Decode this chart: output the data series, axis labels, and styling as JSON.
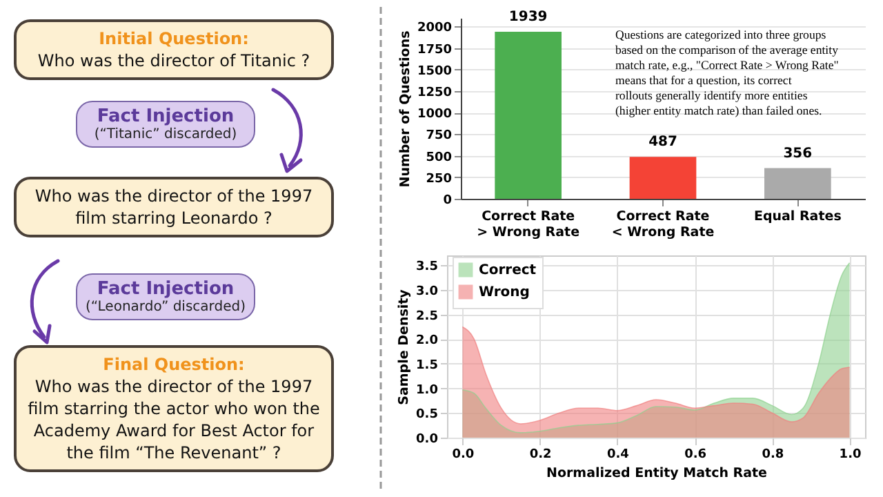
{
  "chart_data": [
    {
      "type": "other",
      "annotations": [
        "Initial Question:",
        "Who was the director of Titanic ?",
        "Fact Injection",
        "(“Titanic” discarded)",
        "Who was the director of the 1997 film starring Leonardo ?",
        "Fact Injection",
        "(“Leonardo” discarded)",
        "Final Question:",
        "Who was the director of the 1997 film starring the actor who won the Academy Award for Best Actor for the film “The Revenant” ?"
      ]
    },
    {
      "type": "bar",
      "ylabel": "Number of Questions",
      "categories": [
        "Correct Rate > Wrong Rate",
        "Correct Rate < Wrong Rate",
        "Equal Rates"
      ],
      "values": [
        1939,
        487,
        356
      ],
      "colors": [
        "#4caf50",
        "#f44336",
        "#aaaaaa"
      ],
      "ylim": [
        0,
        2100
      ],
      "yticks": [
        0,
        250,
        500,
        750,
        1000,
        1250,
        1500,
        1750,
        2000
      ],
      "grid": "y",
      "data_labels": true,
      "annotations": [
        "Questions are categorized into three groups based on the comparison of the average entity match rate, e.g., \"Correct Rate > Wrong Rate\" means that for a question, its correct rollouts generally identify more entities (higher entity match rate) than failed ones."
      ]
    },
    {
      "type": "area",
      "xlabel": "Normalized Entity Match Rate",
      "ylabel": "Sample Density",
      "xlim": [
        -0.04,
        1.04
      ],
      "ylim": [
        0,
        3.7
      ],
      "xticks": [
        {
          "value": 0,
          "label": "0.0"
        },
        {
          "value": 0.2,
          "label": "0.2"
        },
        {
          "value": 0.4,
          "label": "0.4"
        },
        {
          "value": 0.6,
          "label": "0.6"
        },
        {
          "value": 0.8,
          "label": "0.8"
        },
        {
          "value": 1,
          "label": "1.0"
        }
      ],
      "yticks": [
        {
          "value": 0,
          "label": "0.0"
        },
        {
          "value": 0.5,
          "label": "0.5"
        },
        {
          "value": 1,
          "label": "1.0"
        },
        {
          "value": 1.5,
          "label": "1.5"
        },
        {
          "value": 2,
          "label": "2.0"
        },
        {
          "value": 2.5,
          "label": "2.5"
        },
        {
          "value": 3,
          "label": "3.0"
        },
        {
          "value": 3.5,
          "label": "3.5"
        }
      ],
      "x": [
        0,
        0.03,
        0.06,
        0.1,
        0.15,
        0.2,
        0.25,
        0.3,
        0.35,
        0.4,
        0.45,
        0.5,
        0.55,
        0.6,
        0.65,
        0.7,
        0.75,
        0.8,
        0.85,
        0.88,
        0.92,
        0.95,
        0.98,
        1
      ],
      "series": [
        {
          "name": "Correct",
          "color": "#8fd18f",
          "values": [
            0.97,
            0.9,
            0.6,
            0.25,
            0.1,
            0.13,
            0.2,
            0.25,
            0.27,
            0.3,
            0.45,
            0.63,
            0.62,
            0.56,
            0.7,
            0.8,
            0.8,
            0.65,
            0.47,
            0.6,
            1.5,
            2.5,
            3.3,
            3.55
          ]
        },
        {
          "name": "Wrong",
          "color": "#f08080",
          "values": [
            2.25,
            2.0,
            1.3,
            0.6,
            0.28,
            0.35,
            0.5,
            0.6,
            0.6,
            0.55,
            0.65,
            0.77,
            0.7,
            0.6,
            0.65,
            0.7,
            0.68,
            0.5,
            0.32,
            0.4,
            0.9,
            1.2,
            1.4,
            1.43
          ]
        }
      ],
      "grid": true,
      "legend": "top left"
    }
  ]
}
